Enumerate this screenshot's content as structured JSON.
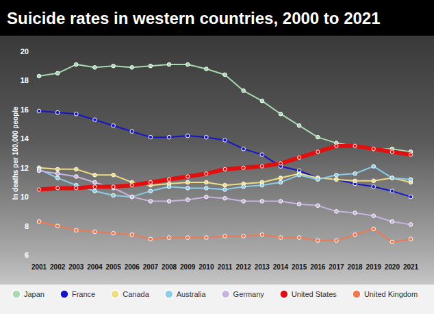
{
  "chart_data": {
    "type": "line",
    "title": "Suicide rates in western countries, 2000 to 2021",
    "y_label": "In deaths per 100,000 people",
    "categories": [
      "2001",
      "2002",
      "2003",
      "2004",
      "2005",
      "2006",
      "2007",
      "2008",
      "2009",
      "2010",
      "2011",
      "2012",
      "2013",
      "2014",
      "2015",
      "2016",
      "2017",
      "2018",
      "2019",
      "2020",
      "2021"
    ],
    "ylim": [
      6,
      20
    ],
    "yticks": [
      6,
      8,
      10,
      12,
      14,
      16,
      18,
      20
    ],
    "grid": false,
    "legend": "bottom",
    "marker": "circle",
    "series": [
      {
        "name": "Japan",
        "color": "#a9d9b1",
        "values": [
          18.3,
          18.5,
          19.1,
          18.9,
          19.0,
          18.9,
          19.0,
          19.1,
          19.1,
          18.8,
          18.4,
          17.3,
          16.6,
          15.7,
          14.9,
          14.1,
          13.7,
          13.5,
          13.3,
          13.3,
          13.1
        ]
      },
      {
        "name": "France",
        "color": "#1414c8",
        "values": [
          15.9,
          15.8,
          15.7,
          15.3,
          14.9,
          14.5,
          14.1,
          14.1,
          14.2,
          14.1,
          13.9,
          13.3,
          12.9,
          12.1,
          11.8,
          11.3,
          11.2,
          10.9,
          10.7,
          10.4,
          10.0
        ]
      },
      {
        "name": "Canada",
        "color": "#f0dc82",
        "values": [
          12.0,
          11.9,
          11.9,
          11.5,
          11.5,
          11.0,
          10.8,
          10.9,
          11.0,
          11.0,
          10.8,
          10.9,
          11.0,
          11.3,
          11.6,
          11.3,
          11.2,
          11.1,
          11.1,
          11.3,
          11.0
        ]
      },
      {
        "name": "Australia",
        "color": "#8ccde8",
        "values": [
          11.9,
          11.3,
          10.8,
          10.4,
          10.1,
          10.0,
          10.4,
          10.7,
          10.6,
          10.6,
          10.5,
          10.7,
          10.8,
          11.0,
          11.5,
          11.2,
          11.5,
          11.6,
          12.1,
          11.3,
          11.2
        ]
      },
      {
        "name": "Germany",
        "color": "#c8b4e0",
        "values": [
          11.8,
          11.6,
          11.4,
          11.0,
          10.6,
          10.0,
          9.7,
          9.7,
          9.8,
          10.0,
          9.9,
          9.7,
          9.7,
          9.7,
          9.5,
          9.4,
          9.0,
          8.9,
          8.7,
          8.3,
          8.1
        ]
      },
      {
        "name": "United States",
        "color": "#e01010",
        "values": [
          10.5,
          10.6,
          10.6,
          10.7,
          10.7,
          10.8,
          11.0,
          11.2,
          11.4,
          11.6,
          11.9,
          12.0,
          12.1,
          12.3,
          12.7,
          13.1,
          13.5,
          13.5,
          13.3,
          13.1,
          12.9
        ]
      },
      {
        "name": "United Kingdom",
        "color": "#f07850",
        "values": [
          8.3,
          8.0,
          7.7,
          7.6,
          7.5,
          7.4,
          7.1,
          7.2,
          7.2,
          7.2,
          7.3,
          7.3,
          7.4,
          7.2,
          7.2,
          7.0,
          7.0,
          7.4,
          7.8,
          6.9,
          7.1
        ]
      }
    ]
  }
}
